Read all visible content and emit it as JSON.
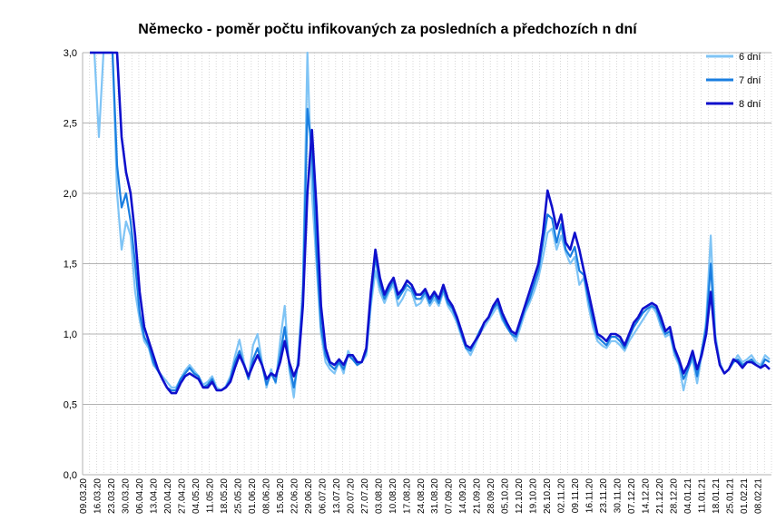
{
  "chart_data": {
    "type": "line",
    "title": "Německo - poměr počtu infikovaných za posledních a předchozích n dní",
    "xlabel": "",
    "ylabel": "",
    "ylim": [
      0,
      3.0
    ],
    "yticks": [
      "0,0",
      "0,5",
      "1,0",
      "1,5",
      "2,0",
      "2,5",
      "3,0"
    ],
    "x_tick_labels": [
      "09.03.20",
      "16.03.20",
      "23.03.20",
      "30.03.20",
      "06.04.20",
      "13.04.20",
      "20.04.20",
      "27.04.20",
      "04.05.20",
      "11.05.20",
      "18.05.20",
      "25.05.20",
      "01.06.20",
      "08.06.20",
      "15.06.20",
      "22.06.20",
      "29.06.20",
      "06.07.20",
      "13.07.20",
      "20.07.20",
      "27.07.20",
      "03.08.20",
      "10.08.20",
      "17.08.20",
      "24.08.20",
      "31.08.20",
      "07.09.20",
      "14.09.20",
      "21.09.20",
      "28.09.20",
      "05.10.20",
      "12.10.20",
      "19.10.20",
      "26.10.20",
      "02.11.20",
      "09.11.20",
      "16.11.20",
      "23.11.20",
      "30.11.20",
      "07.12.20",
      "14.12.20",
      "21.12.20",
      "28.12.20",
      "04.01.21",
      "11.01.21",
      "18.01.21",
      "25.01.21",
      "01.02.21",
      "08.02.21"
    ],
    "grid": true,
    "legend_position": "top-right",
    "series": [
      {
        "name": "6 dní",
        "color": "#7fc4f5",
        "values": [
          3.0,
          3.0,
          2.4,
          3.0,
          3.0,
          3.0,
          2.0,
          1.6,
          1.8,
          1.7,
          1.3,
          1.1,
          0.95,
          0.9,
          0.78,
          0.74,
          0.7,
          0.66,
          0.62,
          0.62,
          0.68,
          0.74,
          0.78,
          0.74,
          0.7,
          0.64,
          0.66,
          0.7,
          0.62,
          0.6,
          0.63,
          0.7,
          0.84,
          0.96,
          0.8,
          0.68,
          0.92,
          1.0,
          0.8,
          0.62,
          0.75,
          0.65,
          0.95,
          1.2,
          0.75,
          0.55,
          0.85,
          1.35,
          3.0,
          2.0,
          1.5,
          1.0,
          0.8,
          0.75,
          0.72,
          0.8,
          0.72,
          0.88,
          0.82,
          0.78,
          0.8,
          0.85,
          1.2,
          1.45,
          1.3,
          1.22,
          1.3,
          1.35,
          1.2,
          1.25,
          1.32,
          1.3,
          1.2,
          1.22,
          1.28,
          1.2,
          1.25,
          1.2,
          1.3,
          1.2,
          1.15,
          1.08,
          0.98,
          0.9,
          0.85,
          0.92,
          1.0,
          1.05,
          1.1,
          1.15,
          1.2,
          1.1,
          1.05,
          1.0,
          0.95,
          1.05,
          1.15,
          1.22,
          1.3,
          1.4,
          1.55,
          1.72,
          1.75,
          1.6,
          1.7,
          1.58,
          1.5,
          1.55,
          1.35,
          1.4,
          1.2,
          1.05,
          0.95,
          0.92,
          0.9,
          0.95,
          0.95,
          0.92,
          0.88,
          0.95,
          1.0,
          1.05,
          1.1,
          1.15,
          1.2,
          1.15,
          1.05,
          0.98,
          1.0,
          0.85,
          0.78,
          0.6,
          0.75,
          0.82,
          0.65,
          0.85,
          1.1,
          1.7,
          1.0,
          0.8,
          0.72,
          0.75,
          0.8,
          0.85,
          0.8,
          0.82,
          0.85,
          0.8,
          0.78,
          0.85,
          0.82
        ]
      },
      {
        "name": "7 dní",
        "color": "#1a7ee0",
        "values": [
          3.0,
          3.0,
          3.0,
          3.0,
          3.0,
          3.0,
          2.2,
          1.9,
          2.0,
          1.8,
          1.5,
          1.15,
          0.98,
          0.92,
          0.8,
          0.74,
          0.68,
          0.62,
          0.6,
          0.6,
          0.68,
          0.72,
          0.76,
          0.72,
          0.7,
          0.62,
          0.64,
          0.68,
          0.6,
          0.6,
          0.62,
          0.68,
          0.8,
          0.88,
          0.78,
          0.68,
          0.82,
          0.9,
          0.78,
          0.64,
          0.72,
          0.66,
          0.85,
          1.05,
          0.78,
          0.62,
          0.8,
          1.25,
          2.6,
          2.3,
          1.6,
          1.05,
          0.85,
          0.78,
          0.75,
          0.8,
          0.75,
          0.85,
          0.82,
          0.78,
          0.8,
          0.88,
          1.25,
          1.55,
          1.35,
          1.25,
          1.32,
          1.38,
          1.25,
          1.3,
          1.35,
          1.32,
          1.25,
          1.25,
          1.3,
          1.22,
          1.28,
          1.22,
          1.32,
          1.22,
          1.18,
          1.1,
          1.0,
          0.9,
          0.88,
          0.95,
          1.02,
          1.08,
          1.12,
          1.18,
          1.22,
          1.12,
          1.05,
          1.0,
          0.98,
          1.08,
          1.18,
          1.25,
          1.35,
          1.45,
          1.65,
          1.85,
          1.82,
          1.65,
          1.78,
          1.6,
          1.55,
          1.62,
          1.45,
          1.42,
          1.25,
          1.1,
          0.98,
          0.95,
          0.92,
          0.98,
          0.98,
          0.95,
          0.9,
          0.98,
          1.05,
          1.1,
          1.15,
          1.18,
          1.2,
          1.18,
          1.08,
          1.0,
          1.02,
          0.88,
          0.8,
          0.68,
          0.75,
          0.85,
          0.7,
          0.88,
          1.05,
          1.5,
          0.95,
          0.78,
          0.72,
          0.75,
          0.8,
          0.82,
          0.78,
          0.8,
          0.82,
          0.78,
          0.76,
          0.82,
          0.8
        ]
      },
      {
        "name": "8 dní",
        "color": "#1010cc",
        "values": [
          3.0,
          3.0,
          3.0,
          3.0,
          3.0,
          3.0,
          3.0,
          2.4,
          2.15,
          2.0,
          1.7,
          1.3,
          1.05,
          0.95,
          0.85,
          0.75,
          0.68,
          0.62,
          0.58,
          0.58,
          0.65,
          0.7,
          0.72,
          0.7,
          0.68,
          0.62,
          0.62,
          0.66,
          0.6,
          0.6,
          0.62,
          0.66,
          0.76,
          0.85,
          0.78,
          0.7,
          0.78,
          0.85,
          0.78,
          0.68,
          0.72,
          0.7,
          0.8,
          0.95,
          0.8,
          0.7,
          0.78,
          1.2,
          2.0,
          2.45,
          1.9,
          1.2,
          0.9,
          0.8,
          0.78,
          0.82,
          0.78,
          0.85,
          0.85,
          0.8,
          0.8,
          0.9,
          1.3,
          1.6,
          1.4,
          1.28,
          1.35,
          1.4,
          1.28,
          1.32,
          1.38,
          1.35,
          1.28,
          1.28,
          1.32,
          1.25,
          1.3,
          1.25,
          1.35,
          1.25,
          1.2,
          1.12,
          1.02,
          0.92,
          0.9,
          0.95,
          1.0,
          1.08,
          1.12,
          1.2,
          1.25,
          1.15,
          1.08,
          1.02,
          1.0,
          1.1,
          1.2,
          1.3,
          1.4,
          1.5,
          1.72,
          2.02,
          1.9,
          1.75,
          1.85,
          1.65,
          1.6,
          1.72,
          1.6,
          1.45,
          1.3,
          1.15,
          1.0,
          0.98,
          0.95,
          1.0,
          1.0,
          0.98,
          0.92,
          1.0,
          1.08,
          1.12,
          1.18,
          1.2,
          1.22,
          1.2,
          1.12,
          1.02,
          1.05,
          0.9,
          0.82,
          0.72,
          0.78,
          0.88,
          0.75,
          0.85,
          1.0,
          1.3,
          0.95,
          0.78,
          0.72,
          0.75,
          0.82,
          0.8,
          0.76,
          0.8,
          0.8,
          0.78,
          0.76,
          0.78,
          0.75
        ]
      }
    ]
  }
}
